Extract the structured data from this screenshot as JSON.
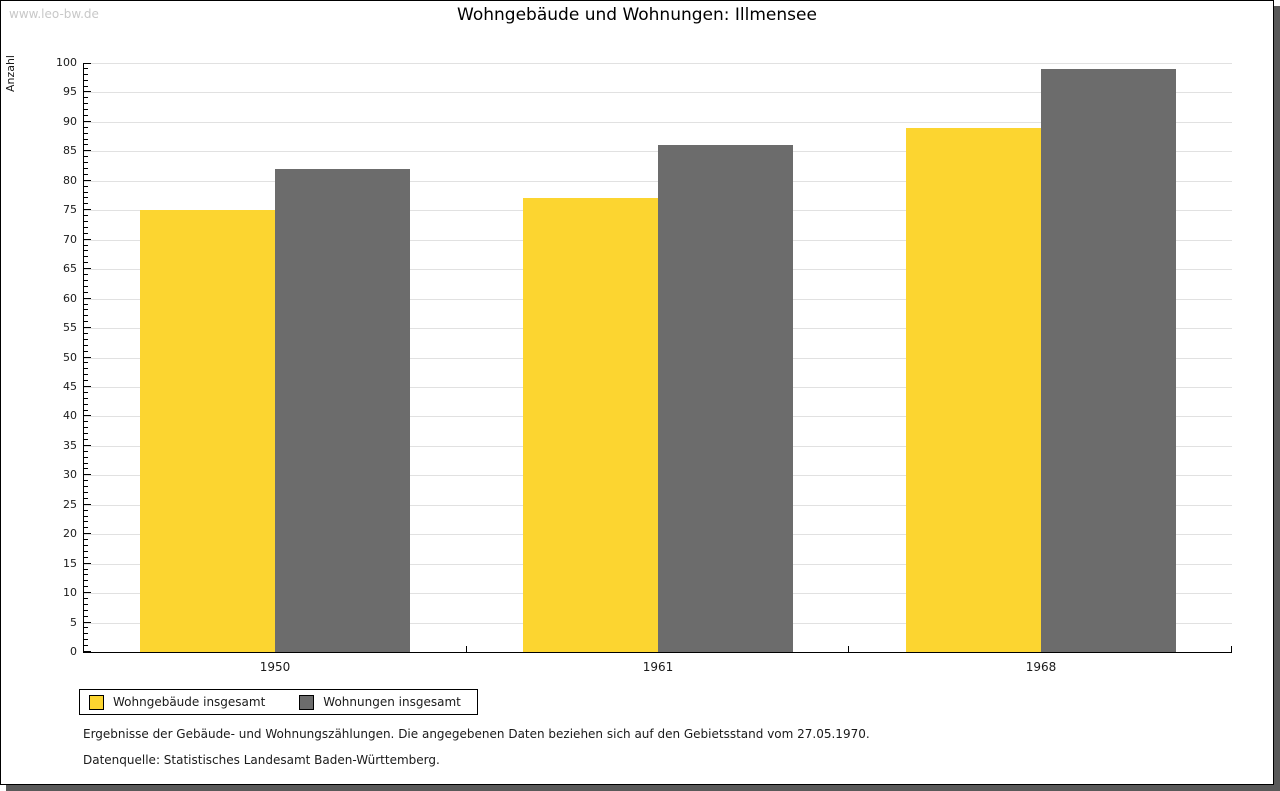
{
  "watermark": "www.leo-bw.de",
  "header": {
    "title": "Wohngebäude und Wohnungen: Illmensee"
  },
  "chart_data": {
    "type": "bar",
    "title": "Wohngebäude und Wohnungen: Illmensee",
    "ylabel": "Anzahl",
    "xlabel": "",
    "categories": [
      "1950",
      "1961",
      "1968"
    ],
    "series": [
      {
        "name": "Wohngebäude insgesamt",
        "color": "#fcd530",
        "values": [
          75,
          77,
          89
        ]
      },
      {
        "name": "Wohnungen insgesamt",
        "color": "#6c6c6c",
        "values": [
          82,
          86,
          99
        ]
      }
    ],
    "ylim": [
      0,
      100
    ],
    "ytick_major": 5,
    "ytick_minor": 1,
    "grid": true,
    "gridline_color": "#e1e1e1",
    "legend_position": "bottom-left"
  },
  "footer": {
    "note": "Ergebnisse der Gebäude- und Wohnungszählungen. Die angegebenen Daten beziehen sich auf den Gebietsstand vom 27.05.1970.",
    "source": "Datenquelle: Statistisches Landesamt Baden-Württemberg."
  }
}
